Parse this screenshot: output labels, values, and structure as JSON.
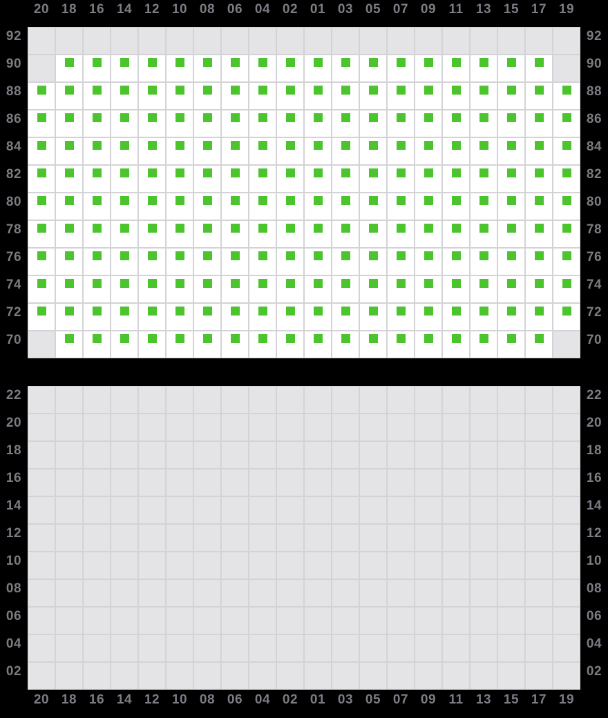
{
  "colors": {
    "background": "#000000",
    "cell_available_bg": "#ffffff",
    "cell_blocked_bg": "#e4e4e7",
    "grid_border": "#d3d3d7",
    "seat_available": "#4cc42e",
    "label_text": "#7d7c84"
  },
  "cell_codes": {
    "a": "available seat (white cell with green square)",
    "n": "no seat (gray blocked cell)"
  },
  "column_labels": [
    "20",
    "18",
    "16",
    "14",
    "12",
    "10",
    "08",
    "06",
    "04",
    "02",
    "01",
    "03",
    "05",
    "07",
    "09",
    "11",
    "13",
    "15",
    "17",
    "19"
  ],
  "sections": {
    "upper": {
      "rows": [
        {
          "label": "92",
          "cells": "nnnnnnnnnnnnnnnnnnnn"
        },
        {
          "label": "90",
          "cells": "naaaaaaaaaaaaaaaaaan"
        },
        {
          "label": "88",
          "cells": "aaaaaaaaaaaaaaaaaaaa"
        },
        {
          "label": "86",
          "cells": "aaaaaaaaaaaaaaaaaaaa"
        },
        {
          "label": "84",
          "cells": "aaaaaaaaaaaaaaaaaaaa"
        },
        {
          "label": "82",
          "cells": "aaaaaaaaaaaaaaaaaaaa"
        },
        {
          "label": "80",
          "cells": "aaaaaaaaaaaaaaaaaaaa"
        },
        {
          "label": "78",
          "cells": "aaaaaaaaaaaaaaaaaaaa"
        },
        {
          "label": "76",
          "cells": "aaaaaaaaaaaaaaaaaaaa"
        },
        {
          "label": "74",
          "cells": "aaaaaaaaaaaaaaaaaaaa"
        },
        {
          "label": "72",
          "cells": "aaaaaaaaaaaaaaaaaaaa"
        },
        {
          "label": "70",
          "cells": "naaaaaaaaaaaaaaaaaan"
        }
      ]
    },
    "lower": {
      "rows": [
        {
          "label": "22",
          "cells": "nnnnnnnnnnnnnnnnnnnn"
        },
        {
          "label": "20",
          "cells": "nnnnnnnnnnnnnnnnnnnn"
        },
        {
          "label": "18",
          "cells": "nnnnnnnnnnnnnnnnnnnn"
        },
        {
          "label": "16",
          "cells": "nnnnnnnnnnnnnnnnnnnn"
        },
        {
          "label": "14",
          "cells": "nnnnnnnnnnnnnnnnnnnn"
        },
        {
          "label": "12",
          "cells": "nnnnnnnnnnnnnnnnnnnn"
        },
        {
          "label": "10",
          "cells": "nnnnnnnnnnnnnnnnnnnn"
        },
        {
          "label": "08",
          "cells": "nnnnnnnnnnnnnnnnnnnn"
        },
        {
          "label": "06",
          "cells": "nnnnnnnnnnnnnnnnnnnn"
        },
        {
          "label": "04",
          "cells": "nnnnnnnnnnnnnnnnnnnn"
        },
        {
          "label": "02",
          "cells": "nnnnnnnnnnnnnnnnnnnn"
        }
      ]
    }
  }
}
